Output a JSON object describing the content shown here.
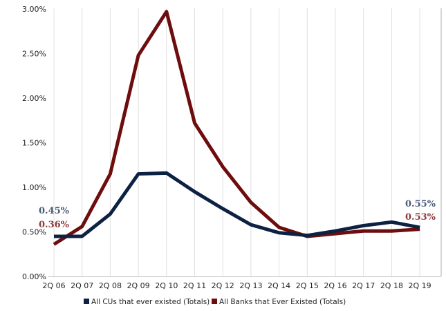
{
  "chart_data": {
    "type": "line",
    "categories": [
      "2Q 06",
      "2Q 07",
      "2Q 08",
      "2Q 09",
      "2Q 10",
      "2Q 11",
      "2Q 12",
      "2Q 13",
      "2Q 14",
      "2Q 15",
      "2Q 16",
      "2Q 17",
      "2Q 18",
      "2Q 19"
    ],
    "series": [
      {
        "name": "All CUs that ever existed (Totals)",
        "color": "#0d2142",
        "values": [
          0.45,
          0.45,
          0.7,
          1.15,
          1.16,
          0.95,
          0.76,
          0.58,
          0.49,
          0.46,
          0.51,
          0.57,
          0.61,
          0.55
        ]
      },
      {
        "name": "All Banks that Ever Existed (Totals)",
        "color": "#6e0d0d",
        "values": [
          0.36,
          0.56,
          1.15,
          2.48,
          2.97,
          1.72,
          1.23,
          0.83,
          0.55,
          0.45,
          0.48,
          0.51,
          0.51,
          0.53
        ]
      }
    ],
    "y_ticks": [
      "0.00%",
      "0.50%",
      "1.00%",
      "1.50%",
      "2.00%",
      "2.50%",
      "3.00%"
    ],
    "ylim": [
      0,
      3.0
    ],
    "grid": "vertical",
    "legend": "bottom",
    "annotations": {
      "cu_start": "0.45%",
      "bank_start": "0.36%",
      "cu_end": "0.55%",
      "bank_end": "0.53%"
    },
    "annotation_colors": {
      "cu": "#4a5a78",
      "bank": "#8c3a3e"
    }
  }
}
